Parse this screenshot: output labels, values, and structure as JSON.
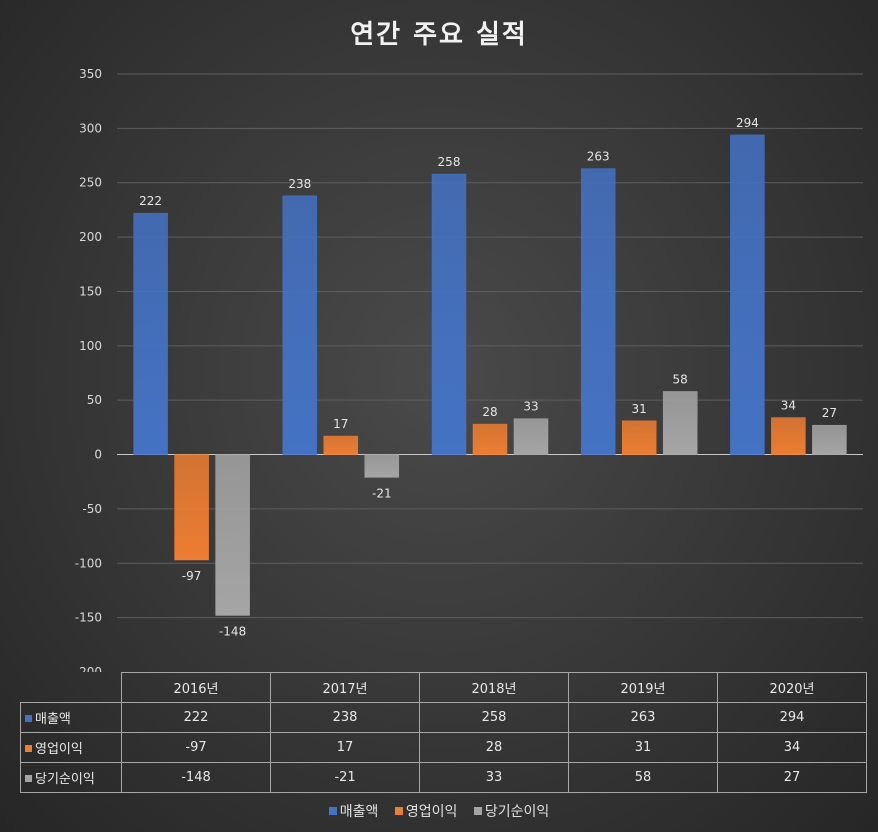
{
  "chart_data": {
    "type": "bar",
    "title": "연간 주요 실적",
    "categories": [
      "2016년",
      "2017년",
      "2018년",
      "2019년",
      "2020년"
    ],
    "series": [
      {
        "name": "매출액",
        "values": [
          222,
          238,
          258,
          263,
          294
        ],
        "color": "#4472c4"
      },
      {
        "name": "영업이익",
        "values": [
          -97,
          17,
          28,
          31,
          34
        ],
        "color": "#ed7d31"
      },
      {
        "name": "당기순이익",
        "values": [
          -148,
          -21,
          33,
          58,
          27
        ],
        "color": "#a5a5a5"
      }
    ],
    "ylim": [
      -200,
      350
    ],
    "yticks": [
      350,
      300,
      250,
      200,
      150,
      100,
      50,
      0,
      -50,
      -100,
      -150,
      -200
    ],
    "grid": true,
    "legend": "bottom",
    "data_table": true
  }
}
